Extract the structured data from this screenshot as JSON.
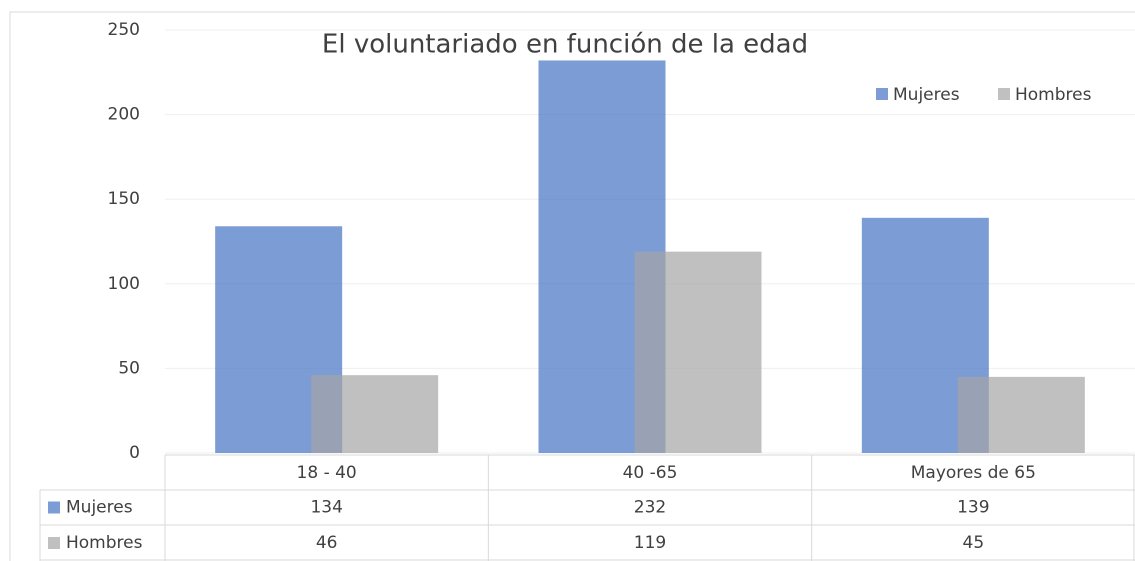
{
  "chart_data": {
    "type": "bar",
    "title": "El voluntariado en función de la edad",
    "categories": [
      "18 - 40",
      "40 -65",
      "Mayores de 65"
    ],
    "series": [
      {
        "name": "Mujeres",
        "color": "#4472c4",
        "values": [
          134,
          232,
          139
        ]
      },
      {
        "name": "Hombres",
        "color": "#a5a5a5",
        "values": [
          46,
          119,
          45
        ]
      }
    ],
    "ylim": [
      0,
      250
    ],
    "yticks": [
      0,
      50,
      100,
      150,
      200,
      250
    ],
    "grid": true,
    "legend": "top-right"
  }
}
